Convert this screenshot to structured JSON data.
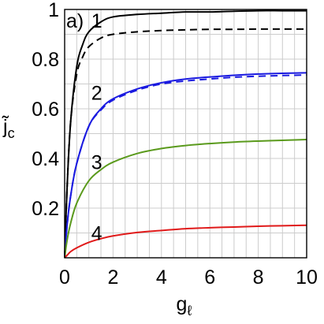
{
  "chart_data": {
    "type": "line",
    "title": "",
    "xlabel": "g",
    "xlabel_subscript": "ℓ",
    "ylabel": "j̃",
    "ylabel_subscript": "c",
    "xlim": [
      0,
      10
    ],
    "ylim": [
      0,
      1
    ],
    "x_ticks": [
      0,
      2,
      4,
      6,
      8,
      10
    ],
    "x_tick_labels": [
      "0",
      "2",
      "4",
      "6",
      "8",
      "10"
    ],
    "y_ticks": [
      0.2,
      0.4,
      0.6,
      0.8,
      1.0
    ],
    "y_tick_labels": [
      "0.2",
      "0.4",
      "0.6",
      "0.8",
      "1"
    ],
    "grid": true,
    "panel_label": "a)",
    "series": [
      {
        "color": "#000000",
        "dashed": false,
        "x": [
          0,
          0.1,
          0.25,
          0.5,
          0.75,
          1,
          1.5,
          2,
          3,
          4,
          5,
          6,
          7,
          8,
          9,
          10
        ],
        "y": [
          0,
          0.28,
          0.55,
          0.77,
          0.86,
          0.91,
          0.95,
          0.97,
          0.98,
          0.985,
          0.99,
          0.99,
          0.993,
          0.995,
          0.995,
          0.995
        ]
      },
      {
        "color": "#000000",
        "dashed": true,
        "x": [
          0,
          0.1,
          0.25,
          0.5,
          0.75,
          1,
          1.5,
          2,
          3,
          4,
          5,
          6,
          7,
          8,
          9,
          10
        ],
        "y": [
          0,
          0.28,
          0.55,
          0.74,
          0.81,
          0.85,
          0.885,
          0.9,
          0.91,
          0.915,
          0.918,
          0.92,
          0.92,
          0.921,
          0.921,
          0.921
        ]
      },
      {
        "color": "#1a1ae0",
        "dashed": false,
        "x": [
          0,
          0.1,
          0.25,
          0.5,
          1,
          1.5,
          2,
          3,
          4,
          5,
          6,
          7,
          8,
          9,
          10
        ],
        "y": [
          0,
          0.13,
          0.25,
          0.38,
          0.53,
          0.6,
          0.64,
          0.68,
          0.705,
          0.72,
          0.728,
          0.735,
          0.74,
          0.743,
          0.745
        ]
      },
      {
        "color": "#1a1ae0",
        "dashed": true,
        "x": [
          0,
          0.1,
          0.25,
          0.5,
          1,
          1.5,
          2,
          3,
          4,
          5,
          6,
          7,
          8,
          9,
          10
        ],
        "y": [
          0,
          0.13,
          0.25,
          0.38,
          0.53,
          0.595,
          0.635,
          0.675,
          0.7,
          0.712,
          0.72,
          0.727,
          0.731,
          0.734,
          0.736
        ]
      },
      {
        "color": "#5a9a1c",
        "dashed": false,
        "x": [
          0,
          0.1,
          0.25,
          0.5,
          1,
          1.5,
          2,
          3,
          4,
          5,
          6,
          7,
          8,
          9,
          10
        ],
        "y": [
          0,
          0.07,
          0.14,
          0.22,
          0.31,
          0.355,
          0.385,
          0.42,
          0.44,
          0.452,
          0.46,
          0.466,
          0.47,
          0.473,
          0.476
        ]
      },
      {
        "color": "#e01a1a",
        "dashed": false,
        "x": [
          0,
          0.1,
          0.25,
          0.5,
          1,
          1.5,
          2,
          3,
          4,
          5,
          6,
          7,
          8,
          9,
          10
        ],
        "y": [
          0,
          0.01,
          0.025,
          0.04,
          0.062,
          0.077,
          0.088,
          0.102,
          0.11,
          0.117,
          0.121,
          0.124,
          0.127,
          0.129,
          0.131
        ]
      }
    ],
    "annotations": [
      {
        "text": "1",
        "x": 1.1,
        "y": 0.955
      },
      {
        "text": "2",
        "x": 1.1,
        "y": 0.665
      },
      {
        "text": "3",
        "x": 1.1,
        "y": 0.385
      },
      {
        "text": "4",
        "x": 1.1,
        "y": 0.1
      }
    ]
  }
}
